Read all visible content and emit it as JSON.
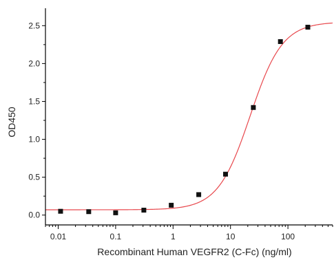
{
  "chart_data": {
    "type": "scatter",
    "title": "",
    "xlabel": "Recombinant Human VEGFR2 (C-Fc) (ng/ml)",
    "ylabel": "OD450",
    "x_scale": "log",
    "xlim": [
      0.006,
      600
    ],
    "ylim": [
      -0.13,
      2.73
    ],
    "x_ticks": [
      0.01,
      0.1,
      1,
      10,
      100
    ],
    "x_tick_labels": [
      "0.01",
      "0.1",
      "1",
      "10",
      "100"
    ],
    "y_ticks": [
      0.0,
      0.5,
      1.0,
      1.5,
      2.0,
      2.5
    ],
    "y_tick_labels": [
      "0.0",
      "0.5",
      "1.0",
      "1.5",
      "2.0",
      "2.5"
    ],
    "grid": false,
    "series": [
      {
        "x": [
          0.011,
          0.034,
          0.1,
          0.31,
          0.93,
          2.8,
          8.2,
          25,
          74,
          222
        ],
        "y": [
          0.05,
          0.045,
          0.03,
          0.065,
          0.13,
          0.27,
          0.54,
          1.42,
          2.29,
          2.48
        ],
        "marker": "square",
        "color": "#111111"
      }
    ],
    "fit_curve": {
      "model": "4PL",
      "bottom": 0.07,
      "top": 2.55,
      "ec50": 22,
      "hill": 1.55,
      "color": "#e8474c"
    }
  }
}
